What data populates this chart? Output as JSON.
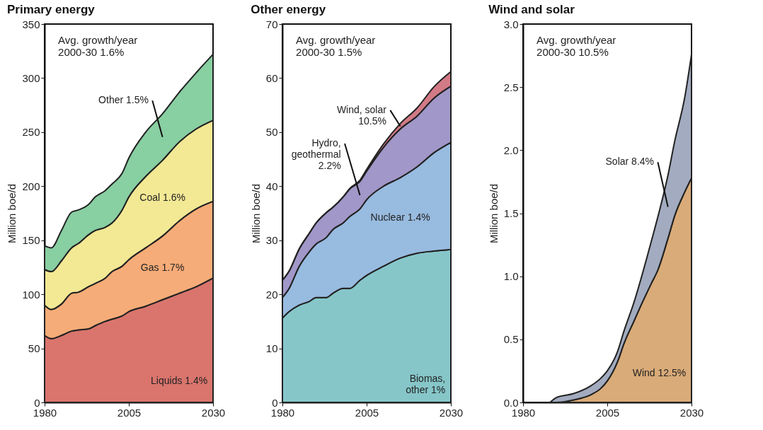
{
  "chart_data": [
    {
      "type": "area",
      "stacked": true,
      "title": "Primary energy",
      "ylabel": "Million boe/d",
      "x": [
        1980,
        1982,
        1985,
        1988,
        1990,
        1993,
        1995,
        1998,
        2000,
        2003,
        2005,
        2010,
        2015,
        2020,
        2025,
        2030
      ],
      "xlim": [
        1980,
        2030
      ],
      "xticks": [
        1980,
        2005,
        2030
      ],
      "ylim": [
        0,
        350
      ],
      "yticks": [
        0,
        50,
        100,
        150,
        200,
        250,
        300,
        350
      ],
      "annotations": [
        "Avg. growth/year\n2000-30 1.6%"
      ],
      "series": [
        {
          "name": "Liquids 1.4%",
          "color": "#d9756d",
          "values": [
            62,
            59,
            62,
            66,
            67,
            68,
            71,
            75,
            77,
            80,
            84,
            89,
            95,
            101,
            107,
            115
          ]
        },
        {
          "name": "Gas 1.7%",
          "color": "#f6ac78",
          "values": [
            28,
            27,
            29,
            35,
            35,
            39,
            39,
            40,
            44,
            46,
            48,
            54,
            59,
            67,
            72,
            71
          ]
        },
        {
          "name": "Coal 1.6%",
          "color": "#f3e894",
          "values": [
            33,
            35,
            40,
            42,
            45,
            48,
            49,
            47,
            45,
            52,
            58,
            66,
            70,
            73,
            74,
            75
          ]
        },
        {
          "name": "Other 1.5%",
          "color": "#88cfa2",
          "values": [
            22,
            22,
            28,
            33,
            31,
            28,
            31,
            34,
            36,
            34,
            36,
            41,
            43,
            46,
            52,
            61
          ]
        }
      ]
    },
    {
      "type": "area",
      "stacked": true,
      "title": "Other energy",
      "ylabel": "Million boe/d",
      "x": [
        1980,
        1982,
        1985,
        1988,
        1990,
        1993,
        1995,
        1998,
        2000,
        2003,
        2005,
        2010,
        2015,
        2020,
        2025,
        2030
      ],
      "xlim": [
        1980,
        2030
      ],
      "xticks": [
        1980,
        2005,
        2030
      ],
      "ylim": [
        0,
        70
      ],
      "yticks": [
        0,
        10,
        20,
        30,
        40,
        50,
        60,
        70
      ],
      "annotations": [
        "Avg. growth/year\n2000-30 1.5%"
      ],
      "series": [
        {
          "name": "Biomas, other 1%",
          "color": "#86c6c9",
          "values": [
            15.6,
            16.8,
            18,
            18.7,
            19.4,
            19.4,
            20.2,
            21.1,
            21.1,
            22.6,
            23.5,
            25.2,
            26.7,
            27.6,
            28,
            28.3
          ]
        },
        {
          "name": "Nuclear 1.4%",
          "color": "#98bbe0",
          "values": [
            3.8,
            4.3,
            7.2,
            9.2,
            9.9,
            11.1,
            11.8,
            12.1,
            13.3,
            13.2,
            14,
            14.8,
            14.9,
            16,
            18.2,
            19.8
          ]
        },
        {
          "name": "Hydro, geothermal 2.2%",
          "color": "#a197c8",
          "values": [
            3.2,
            3.2,
            3.2,
            3.4,
            3.9,
            4.6,
            4.1,
            4.8,
            5.1,
            5.1,
            5.3,
            7.2,
            9,
            9.4,
            10.1,
            10.4
          ]
        },
        {
          "name": "Wind, solar 10.5%",
          "color": "#d27a86",
          "values": [
            0,
            0,
            0,
            0,
            0,
            0,
            0,
            0,
            0.1,
            0.2,
            0.3,
            0.6,
            1,
            1.5,
            2.1,
            2.7
          ]
        }
      ]
    },
    {
      "type": "area",
      "stacked": true,
      "title": "Wind and solar",
      "ylabel": "Million boe/d",
      "x": [
        1988,
        1990,
        1995,
        2000,
        2003,
        2005,
        2008,
        2010,
        2013,
        2015,
        2018,
        2020,
        2023,
        2025,
        2028,
        2030
      ],
      "xlim": [
        1980,
        2030
      ],
      "xticks": [
        1980,
        2005,
        2030
      ],
      "ylim": [
        0,
        3
      ],
      "yticks": [
        {
          "value": 0,
          "label": "0.0"
        },
        {
          "value": 0.5,
          "label": "0.5"
        },
        {
          "value": 1,
          "label": "1.0"
        },
        {
          "value": 1.5,
          "label": "1.5"
        },
        {
          "value": 2,
          "label": "2.0"
        },
        {
          "value": 2.5,
          "label": "2.5"
        },
        {
          "value": 3,
          "label": "3.0"
        }
      ],
      "annotations": [
        "Avg. growth/year\n2000-30 10.5%"
      ],
      "series": [
        {
          "name": "Wind 12.5%",
          "color": "#d9ab78",
          "values": [
            0,
            0,
            0.02,
            0.06,
            0.11,
            0.17,
            0.32,
            0.47,
            0.65,
            0.77,
            0.94,
            1.05,
            1.3,
            1.48,
            1.67,
            1.78
          ]
        },
        {
          "name": "Solar 8.4%",
          "color": "#a2abbf",
          "values": [
            0,
            0.04,
            0.05,
            0.07,
            0.08,
            0.08,
            0.08,
            0.1,
            0.15,
            0.21,
            0.33,
            0.42,
            0.5,
            0.59,
            0.75,
            0.98
          ]
        }
      ]
    }
  ]
}
